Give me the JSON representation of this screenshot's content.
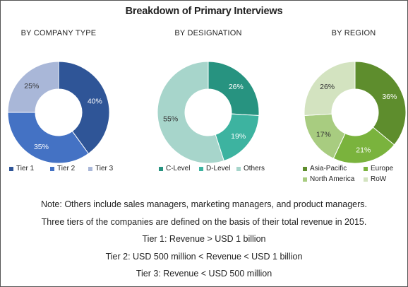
{
  "title": "Breakdown of Primary Interviews",
  "chart_data": [
    {
      "type": "pie",
      "title": "BY COMPANY TYPE",
      "categories": [
        "Tier 1",
        "Tier 2",
        "Tier 3"
      ],
      "values": [
        40,
        35,
        25
      ],
      "value_labels": [
        "40%",
        "35%",
        "25%"
      ],
      "colors": [
        "#2F5597",
        "#4472C4",
        "#A9B7D8"
      ],
      "legend_position": "bottom"
    },
    {
      "type": "pie",
      "title": "BY DESIGNATION",
      "categories": [
        "C-Level",
        "D-Level",
        "Others"
      ],
      "values": [
        26,
        19,
        55
      ],
      "value_labels": [
        "26%",
        "19%",
        "55%"
      ],
      "colors": [
        "#279380",
        "#3DB3A0",
        "#A7D5CB"
      ],
      "legend_position": "bottom"
    },
    {
      "type": "pie",
      "title": "BY REGION",
      "categories": [
        "Asia-Pacific",
        "Europe",
        "North America",
        "RoW"
      ],
      "values": [
        36,
        21,
        17,
        26
      ],
      "value_labels": [
        "36%",
        "21%",
        "17%",
        "26%"
      ],
      "colors": [
        "#5E8D2D",
        "#7AB33D",
        "#A8CC80",
        "#D3E3C0"
      ],
      "legend_position": "bottom"
    }
  ],
  "notes": [
    "Note: Others include sales managers, marketing managers, and product managers.",
    "Three tiers of the companies are defined on the basis of their total revenue in 2015.",
    "Tier 1: Revenue > USD 1 billion",
    "Tier 2: USD 500 million < Revenue < USD 1 billion",
    "Tier 3: Revenue < USD 500 million"
  ]
}
